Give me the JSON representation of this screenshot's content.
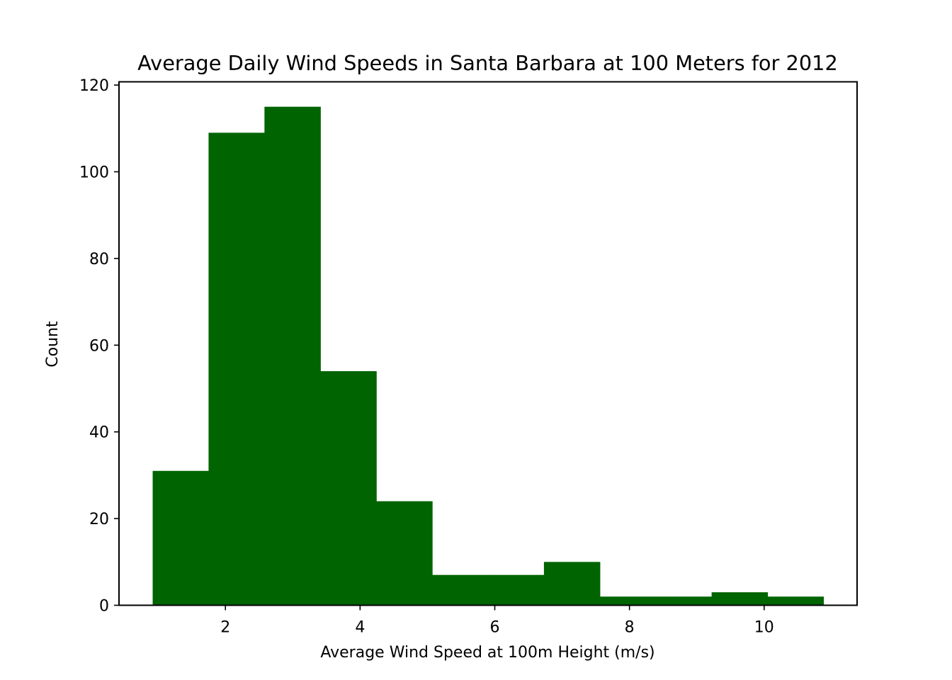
{
  "chart_data": {
    "type": "bar",
    "title": "Average Daily Wind Speeds in Santa Barbara at 100 Meters for 2012",
    "xlabel": "Average Wind Speed at 100m Height (m/s)",
    "ylabel": "Count",
    "bin_edges": [
      0.92,
      1.75,
      2.58,
      3.41,
      4.24,
      5.07,
      5.9,
      6.73,
      7.56,
      8.39,
      9.22,
      10.05,
      10.88
    ],
    "values": [
      31,
      109,
      115,
      54,
      24,
      7,
      7,
      10,
      2,
      2,
      3,
      2
    ],
    "xlim": [
      0.42,
      11.38
    ],
    "ylim": [
      0,
      120.75
    ],
    "xticks": [
      2,
      4,
      6,
      8,
      10
    ],
    "yticks": [
      0,
      20,
      40,
      60,
      80,
      100,
      120
    ],
    "bar_color": "#006400",
    "grid": false,
    "legend": "none"
  }
}
